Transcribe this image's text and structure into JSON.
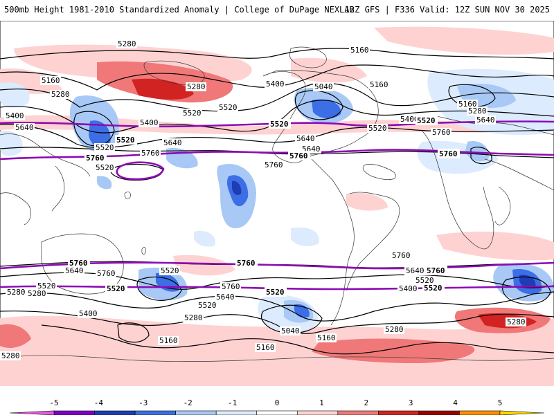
{
  "header": {
    "left_title": "500mb Height 1981-2010 Standardized Anomaly | College of DuPage NEXLAB",
    "right_title": "12Z GFS | F336 Valid: 12Z SUN NOV 30 2025"
  },
  "map": {
    "contour_labels": [
      {
        "text": "5280",
        "purple": false
      },
      {
        "text": "5160",
        "purple": false
      },
      {
        "text": "5160",
        "purple": false
      },
      {
        "text": "5280",
        "purple": false
      },
      {
        "text": "5400",
        "purple": false
      },
      {
        "text": "5640",
        "purple": false
      },
      {
        "text": "5520",
        "purple": true
      },
      {
        "text": "5640",
        "purple": false
      },
      {
        "text": "5520",
        "purple": false
      },
      {
        "text": "5760",
        "purple": true
      },
      {
        "text": "5280",
        "purple": false
      },
      {
        "text": "5400",
        "purple": false
      },
      {
        "text": "5520",
        "purple": false
      },
      {
        "text": "5520",
        "purple": false
      },
      {
        "text": "5400",
        "purple": false
      },
      {
        "text": "5040",
        "purple": false
      },
      {
        "text": "5160",
        "purple": false
      },
      {
        "text": "5520",
        "purple": true
      },
      {
        "text": "5640",
        "purple": false
      },
      {
        "text": "5760",
        "purple": false
      },
      {
        "text": "5640",
        "purple": false
      },
      {
        "text": "5760",
        "purple": false
      },
      {
        "text": "5760",
        "purple": true
      },
      {
        "text": "5400",
        "purple": false
      },
      {
        "text": "5520",
        "purple": false
      },
      {
        "text": "5520",
        "purple": true
      },
      {
        "text": "5760",
        "purple": false
      },
      {
        "text": "5160",
        "purple": false
      },
      {
        "text": "5280",
        "purple": false
      },
      {
        "text": "5640",
        "purple": false
      },
      {
        "text": "5760",
        "purple": true
      },
      {
        "text": "5520",
        "purple": false
      },
      {
        "text": "5760",
        "purple": true
      },
      {
        "text": "5760",
        "purple": true
      },
      {
        "text": "5520",
        "purple": false
      },
      {
        "text": "5640",
        "purple": false
      },
      {
        "text": "5760",
        "purple": false
      },
      {
        "text": "5520",
        "purple": true
      },
      {
        "text": "5520",
        "purple": false
      },
      {
        "text": "5280",
        "purple": false
      },
      {
        "text": "5760",
        "purple": false
      },
      {
        "text": "5640",
        "purple": false
      },
      {
        "text": "5520",
        "purple": false
      },
      {
        "text": "5400",
        "purple": false
      },
      {
        "text": "5280",
        "purple": false
      },
      {
        "text": "5040",
        "purple": false
      },
      {
        "text": "5160",
        "purple": false
      },
      {
        "text": "5160",
        "purple": false
      },
      {
        "text": "5160",
        "purple": false
      },
      {
        "text": "5520",
        "purple": true
      },
      {
        "text": "5760",
        "purple": false
      },
      {
        "text": "5640",
        "purple": false
      },
      {
        "text": "5760",
        "purple": true
      },
      {
        "text": "5520",
        "purple": false
      },
      {
        "text": "5400",
        "purple": false
      },
      {
        "text": "5520",
        "purple": true
      },
      {
        "text": "5280",
        "purple": false
      },
      {
        "text": "5280",
        "purple": false
      },
      {
        "text": "5280",
        "purple": false
      },
      {
        "text": "5280",
        "purple": false
      }
    ]
  },
  "colorbar": {
    "ticks": [
      "-5",
      "-4",
      "-3",
      "-2",
      "-1",
      "0",
      "1",
      "2",
      "3",
      "4",
      "5"
    ],
    "colors": [
      "#e55be0",
      "#7f00c8",
      "#1e3cb4",
      "#3c6ee6",
      "#a8c8f5",
      "#dcebfd",
      "#ffffff",
      "#ffd2d2",
      "#f07878",
      "#d22323",
      "#9b0000",
      "#ff8c00",
      "#ffd700"
    ]
  }
}
